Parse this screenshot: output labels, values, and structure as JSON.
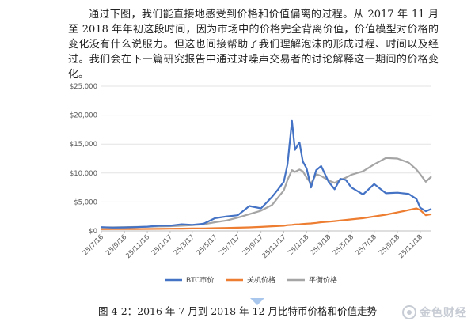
{
  "paragraph": "通过下图，我们能直接地感受到价格和价值偏离的过程。从 2017 年 11 月至 2018 年年初这段时间，因为市场中的价格完全背离价值，价值模型对价格的变化没有什么说服力。但这也间接帮助了我们理解泡沫的形成过程、时间以及经过。我们会在下一篇研究报告中通过对噪声交易者的讨论解释这一期间的价格变化。",
  "caption": "图 4-2：2016 年 7 月到 2018 年 12 月比特币价格和价值走势",
  "watermark": "金色财经",
  "colors": {
    "btc": "#4472c4",
    "shutdown": "#ed7d31",
    "equilibrium": "#a5a5a5"
  },
  "chart_data": {
    "type": "line",
    "title": "",
    "xlabel": "",
    "ylabel": "",
    "ylim": [
      0,
      25000
    ],
    "yticks": [
      "$0",
      "$5,000",
      "$10,000",
      "$15,000",
      "$20,000",
      "$25,000"
    ],
    "x_tick_labels": [
      "25/7/16",
      "25/9/16",
      "25/11/16",
      "25/1/17",
      "25/3/17",
      "25/5/17",
      "25/7/17",
      "25/9/17",
      "25/11/17",
      "25/1/18",
      "25/3/18",
      "25/5/18",
      "25/7/18",
      "25/9/18",
      "25/11/18"
    ],
    "grid": true,
    "legend_position": "bottom",
    "x": [
      "2016-07-25",
      "2016-08-25",
      "2016-09-25",
      "2016-10-25",
      "2016-11-25",
      "2016-12-25",
      "2017-01-25",
      "2017-02-25",
      "2017-03-25",
      "2017-04-25",
      "2017-05-25",
      "2017-06-25",
      "2017-07-25",
      "2017-08-25",
      "2017-09-25",
      "2017-10-25",
      "2017-11-10",
      "2017-11-25",
      "2017-12-05",
      "2017-12-17",
      "2017-12-25",
      "2018-01-06",
      "2018-01-15",
      "2018-01-25",
      "2018-02-06",
      "2018-02-20",
      "2018-03-05",
      "2018-03-25",
      "2018-04-10",
      "2018-04-25",
      "2018-05-10",
      "2018-05-25",
      "2018-06-25",
      "2018-07-25",
      "2018-08-25",
      "2018-09-25",
      "2018-10-25",
      "2018-11-15",
      "2018-11-25",
      "2018-12-10",
      "2018-12-25"
    ],
    "series": [
      {
        "name": "BTC市价",
        "values": [
          650,
          580,
          600,
          650,
          740,
          900,
          920,
          1150,
          1050,
          1250,
          2200,
          2500,
          2700,
          4300,
          3900,
          5900,
          7200,
          8500,
          11500,
          19000,
          14000,
          15300,
          12000,
          10800,
          7500,
          10500,
          11200,
          8500,
          7200,
          9000,
          8800,
          7500,
          6300,
          8100,
          6500,
          6600,
          6400,
          5500,
          4000,
          3400,
          3800
        ]
      },
      {
        "name": "关机价格",
        "values": [
          300,
          310,
          320,
          330,
          340,
          360,
          380,
          400,
          420,
          440,
          480,
          520,
          560,
          620,
          700,
          800,
          850,
          900,
          1000,
          1050,
          1100,
          1150,
          1200,
          1250,
          1300,
          1400,
          1500,
          1600,
          1700,
          1800,
          1900,
          2000,
          2200,
          2500,
          2800,
          3200,
          3600,
          3900,
          3600,
          2700,
          2900
        ]
      },
      {
        "name": "平衡价格",
        "values": [
          600,
          620,
          650,
          680,
          720,
          780,
          820,
          900,
          1000,
          1150,
          1500,
          1800,
          2300,
          2900,
          3500,
          4500,
          5800,
          7000,
          8800,
          10500,
          10200,
          10600,
          10300,
          9200,
          8200,
          9800,
          9500,
          8700,
          8300,
          8800,
          9200,
          9700,
          10300,
          11500,
          12600,
          12500,
          11800,
          10600,
          9800,
          8500,
          9400
        ]
      }
    ]
  }
}
